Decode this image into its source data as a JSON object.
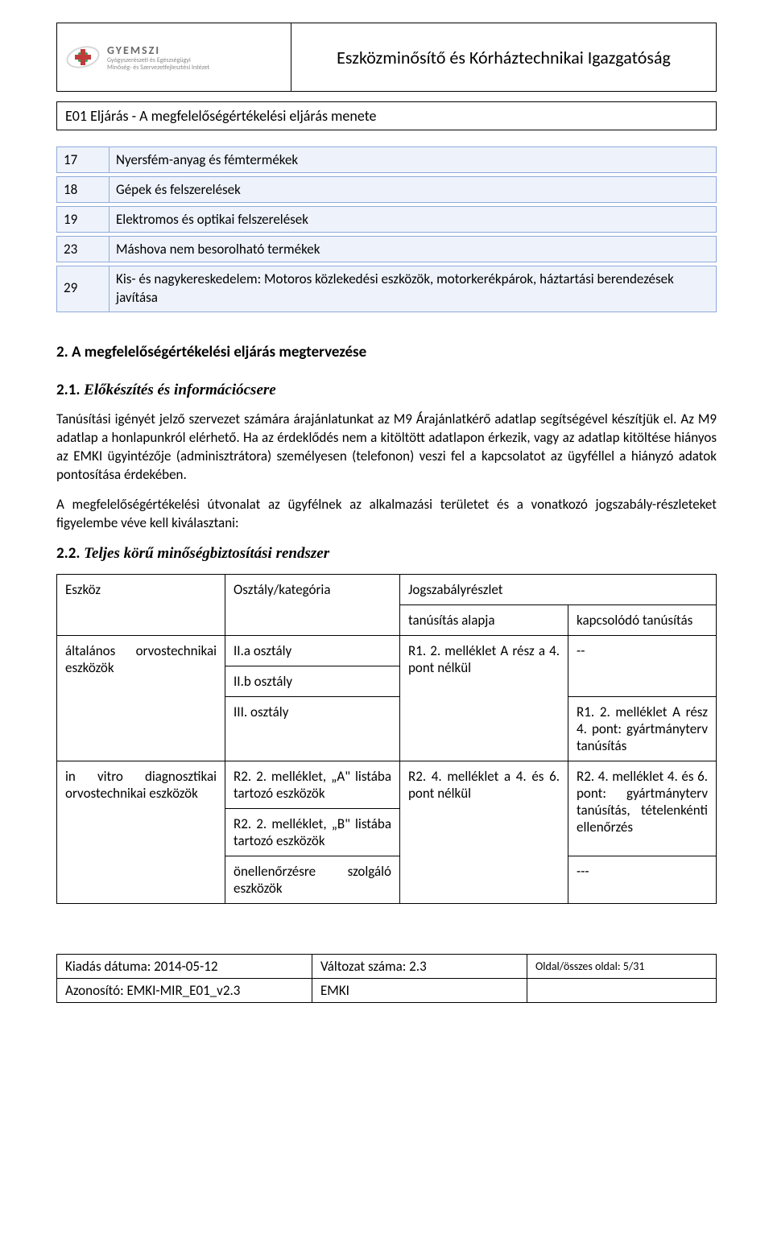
{
  "header": {
    "logo": {
      "title": "GYEMSZI",
      "subtitle_lines": [
        "Gyógyszerészeti és Egészségügyi",
        "Minőség- és Szervezetfejlesztési Intézet"
      ],
      "colors": {
        "accent_green": "#3aa35f",
        "accent_red": "#c23b3b",
        "frame": "#d8d8d8",
        "text": "#6b6b6b"
      }
    },
    "directorate": "Eszközminősítő és Kórháztechnikai Igazgatóság",
    "subtitle": "E01 Eljárás - A megfelelőségértékelési eljárás menete"
  },
  "product_list": {
    "row_background": "#eef3fb",
    "row_border": "#8faadc",
    "rows": [
      {
        "n": "17",
        "txt": "Nyersfém-anyag és fémtermékek"
      },
      {
        "n": "18",
        "txt": "Gépek és felszerelések"
      },
      {
        "n": "19",
        "txt": "Elektromos és optikai felszerelések"
      },
      {
        "n": "23",
        "txt": "Máshova nem besorolható termékek"
      },
      {
        "n": "29",
        "txt": "Kis- és nagykereskedelem: Motoros közlekedési eszközök, motorkerékpárok, háztartási berendezések javítása"
      }
    ]
  },
  "sections": {
    "s2_title": "2. A megfelelőségértékelési eljárás megtervezése",
    "s21_num": "2.1.",
    "s21_title": "Előkészítés és információcsere",
    "p1": "Tanúsítási igényét jelző szervezet számára árajánlatunkat az M9 Árajánlatkérő adatlap segítségével készítjük el. Az M9 adatlap a honlapunkról elérhető. Ha az érdek­lődés nem a kitöltött adatlapon érke­zik, vagy az adatlap kitöltése hiányos az EMKI ügyintézője (adminisztrátora) személyesen (telefonon) veszi fel a kapcsolatot az ügyféllel a hiányzó adatok pontosítása érdekében.",
    "p2": "A megfelelőségértékelési útvonalat az ügyfélnek az alkalmazási területet és a vonatkozó jogszabály-részleteket figyelembe véve kell kiválasztani:",
    "s22_num": "2.2.",
    "s22_title": "Teljes körű minőségbiztosítási rendszer"
  },
  "big_table": {
    "header": {
      "eszkoz": "Eszköz",
      "osztaly": "Osztály/kategória",
      "jogszabaly": "Jogszabályrészlet",
      "alap": "tanúsítás alapja",
      "kapcsolodo": "kapcsolódó tanúsítás"
    },
    "rows": {
      "r1_eszkoz": "általános orvostechni­kai eszközök",
      "r1_oszt_a": "II.a osztály",
      "r1_oszt_b": "II.b osztály",
      "r1_oszt_c": "III. osztály",
      "r1_alap": "R1. 2. melléklet A rész a 4. pont nélkül",
      "r1_kapcs_a": "--",
      "r1_kapcs_b": "R1. 2. melléklet A rész 4. pont: gyártmányterv tanúsí­tás",
      "r2_eszkoz": "in vitro diagnosztikai orvostechnikai eszkö­zök",
      "r2_oszt_a": "R2. 2. melléklet, „A\" listába tartozó eszközök",
      "r2_oszt_b": "R2. 2. melléklet, „B\" listába tartozó eszközök",
      "r2_oszt_c": "önellenőrzésre szolgáló eszközök",
      "r2_alap": "R2. 4. melléklet a 4. és 6. pont nélkül",
      "r2_kapcs_a": "R2. 4. melléklet 4. és 6. pont: gyártmányterv tanúsítás, tételenkénti ellenőrzés",
      "r2_kapcs_b": "---"
    }
  },
  "footer": {
    "kiadas": "Kiadás dátuma: 2014-05-12",
    "valtozat": "Változat száma: 2.3",
    "oldal": "Oldal/összes oldal: 5/31",
    "azonosito": "Azonosító: EMKI-MIR_E01_v2.3",
    "emki": "EMKI"
  },
  "font_sizes": {
    "body": 17,
    "header_title": 22,
    "subtitle": 18,
    "footer": 17,
    "footer_small": 14
  }
}
